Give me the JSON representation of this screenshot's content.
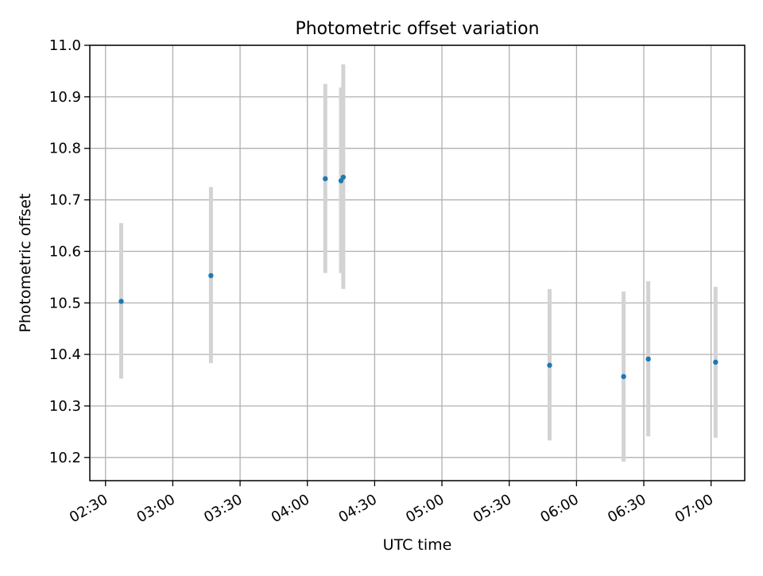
{
  "chart_data": {
    "type": "scatter",
    "title": "Photometric offset variation",
    "xlabel": "UTC time",
    "ylabel": "Photometric offset",
    "x_axis_kind": "time",
    "xlim": [
      "02:23",
      "07:15"
    ],
    "ylim": [
      10.155,
      11.0
    ],
    "x_ticks": [
      "02:30",
      "03:00",
      "03:30",
      "04:00",
      "04:30",
      "05:00",
      "05:30",
      "06:00",
      "06:30",
      "07:00"
    ],
    "y_ticks": [
      "10.2",
      "10.3",
      "10.4",
      "10.5",
      "10.6",
      "10.7",
      "10.8",
      "10.9",
      "11.0"
    ],
    "grid": true,
    "legend": false,
    "series": [
      {
        "points": [
          {
            "x": "02:37",
            "y": 10.503,
            "ylow": 10.353,
            "yhigh": 10.655
          },
          {
            "x": "03:17",
            "y": 10.553,
            "ylow": 10.383,
            "yhigh": 10.725
          },
          {
            "x": "04:08",
            "y": 10.741,
            "ylow": 10.558,
            "yhigh": 10.925
          },
          {
            "x": "04:15",
            "y": 10.737,
            "ylow": 10.558,
            "yhigh": 10.918
          },
          {
            "x": "04:16",
            "y": 10.744,
            "ylow": 10.527,
            "yhigh": 10.963
          },
          {
            "x": "05:48",
            "y": 10.379,
            "ylow": 10.233,
            "yhigh": 10.527
          },
          {
            "x": "06:21",
            "y": 10.357,
            "ylow": 10.192,
            "yhigh": 10.522
          },
          {
            "x": "06:32",
            "y": 10.391,
            "ylow": 10.241,
            "yhigh": 10.542
          },
          {
            "x": "07:02",
            "y": 10.385,
            "ylow": 10.238,
            "yhigh": 10.531
          }
        ]
      }
    ],
    "colors": {
      "marker": "#1f77b4",
      "errorbar": "#d3d3d3",
      "grid": "#b0b0b0",
      "axes": "#000000"
    }
  }
}
